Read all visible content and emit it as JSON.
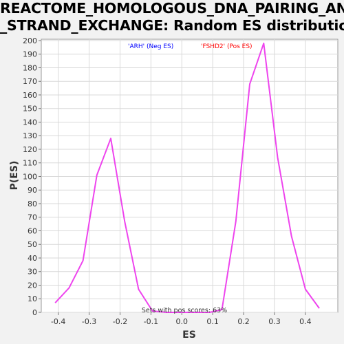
{
  "chart_data": {
    "type": "line",
    "title_lines": [
      "REACTOME_HOMOLOGOUS_DNA_PAIRING_AND",
      "_STRAND_EXCHANGE: Random ES distribution"
    ],
    "xlabel": "ES",
    "ylabel": "P(ES)",
    "xlim": [
      -0.455,
      0.505
    ],
    "ylim": [
      0,
      201
    ],
    "x_ticks": [
      -0.4,
      -0.3,
      -0.2,
      -0.1,
      0.0,
      0.1,
      0.2,
      0.3,
      0.4
    ],
    "x_tick_labels": [
      "-0.4",
      "-0.3",
      "-0.2",
      "-0.1",
      "0.0",
      "0.1",
      "0.2",
      "0.3",
      "0.4"
    ],
    "y_ticks": [
      0,
      10,
      20,
      30,
      40,
      50,
      60,
      70,
      80,
      90,
      100,
      110,
      120,
      130,
      140,
      150,
      160,
      170,
      180,
      190,
      200
    ],
    "grid": true,
    "legend": [
      {
        "label": "'ARH' (Neg ES)",
        "color": "#0000ff"
      },
      {
        "label": "'FSHD2' (Pos ES)",
        "color": "#ff0000"
      }
    ],
    "annotation": "Sets with pos scores: 63%",
    "series": [
      {
        "color": "#ee44ee",
        "x": [
          -0.41,
          -0.365,
          -0.32,
          -0.275,
          -0.23,
          -0.185,
          -0.14,
          -0.095,
          -0.05,
          0.0,
          0.05,
          0.09,
          0.13,
          0.175,
          0.22,
          0.265,
          0.31,
          0.355,
          0.4,
          0.445
        ],
        "y": [
          7,
          18,
          38,
          101,
          128,
          67,
          17,
          1,
          0,
          0,
          0,
          0,
          2,
          67,
          168,
          198,
          114,
          56,
          17,
          3
        ]
      }
    ]
  }
}
